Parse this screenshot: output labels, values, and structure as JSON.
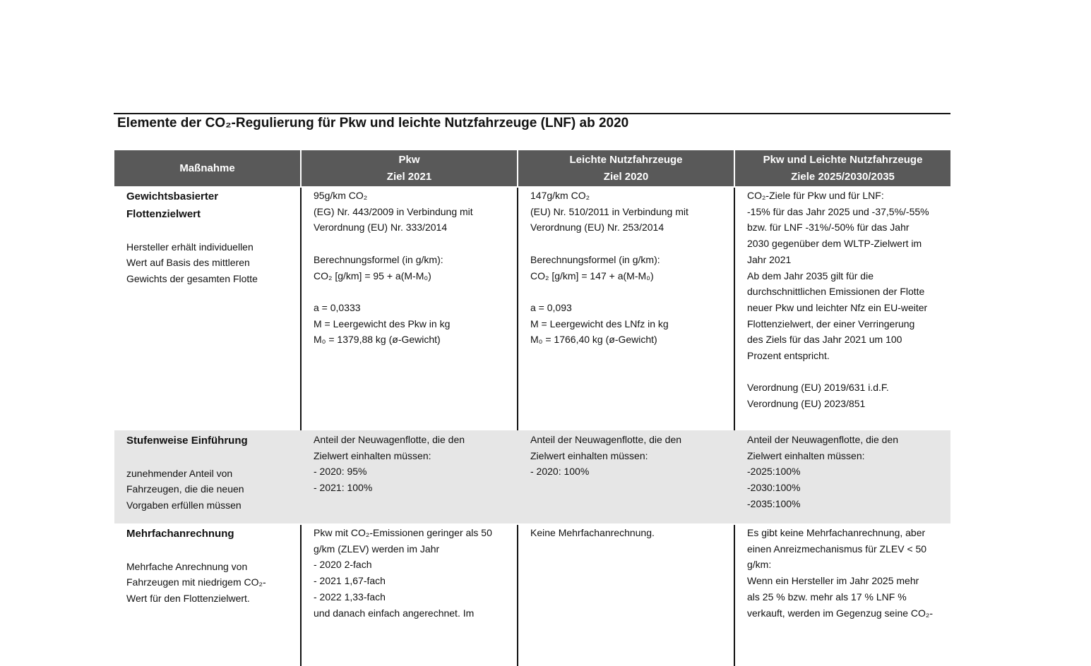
{
  "title": "Elemente der CO₂-Regulierung für Pkw und leichte Nutzfahrzeuge (LNF) ab 2020",
  "table": {
    "headers": [
      [
        "Maßnahme"
      ],
      [
        "Pkw",
        "Ziel 2021"
      ],
      [
        "Leichte Nutzfahrzeuge",
        "Ziel 2020"
      ],
      [
        "Pkw und Leichte Nutzfahrzeuge",
        "Ziele 2025/2030/2035"
      ]
    ],
    "rows": [
      [
        [
          [
            "Gewichtsbasierter",
            "Flottenzielwert"
          ],
          [
            "Hersteller erhält individuellen",
            "Wert auf Basis des mittleren",
            "Gewichts der gesamten Flotte"
          ]
        ],
        [
          [
            "95g/km CO₂",
            "(EG) Nr. 443/2009 in Verbindung mit",
            "Verordnung (EU) Nr. 333/2014"
          ],
          [
            "Berechnungsformel (in g/km):",
            "CO₂ [g/km] = 95 + a(M-M₀)"
          ],
          [
            "a = 0,0333",
            "M = Leergewicht des Pkw in kg",
            "M₀ = 1379,88 kg (ø-Gewicht)"
          ]
        ],
        [
          [
            "147g/km CO₂",
            "(EU) Nr. 510/2011 in Verbindung mit",
            "Verordnung (EU) Nr. 253/2014"
          ],
          [
            "Berechnungsformel (in g/km):",
            "CO₂ [g/km] = 147 + a(M-M₀)"
          ],
          [
            "a = 0,093",
            "M = Leergewicht des LNfz in kg",
            "M₀ = 1766,40 kg (ø-Gewicht)"
          ]
        ],
        [
          [
            "CO₂-Ziele für Pkw und für LNF:",
            "-15% für das Jahr 2025 und -37,5%/-55%",
            "bzw. für LNF -31%/-50% für das Jahr",
            "2030 gegenüber dem WLTP-Zielwert im",
            "Jahr 2021",
            "Ab dem Jahr 2035 gilt für die",
            "durchschnittlichen Emissionen der Flotte",
            "neuer Pkw und leichter Nfz ein EU-weiter",
            "Flottenzielwert, der einer Verringerung",
            "des Ziels für das Jahr 2021 um 100",
            "Prozent entspricht."
          ],
          [
            "Verordnung (EU) 2019/631 i.d.F.",
            "Verordnung (EU) 2023/851"
          ]
        ]
      ],
      [
        [
          [
            "Stufenweise Einführung"
          ],
          [
            "zunehmender Anteil von",
            "Fahrzeugen, die die neuen",
            "Vorgaben erfüllen müssen"
          ]
        ],
        [
          [
            "Anteil der Neuwagenflotte, die den",
            "Zielwert einhalten müssen:",
            "- 2020: 95%",
            "- 2021: 100%"
          ]
        ],
        [
          [
            "Anteil der Neuwagenflotte, die den",
            "Zielwert einhalten müssen:",
            "- 2020: 100%"
          ]
        ],
        [
          [
            "Anteil der Neuwagenflotte, die den",
            "Zielwert einhalten müssen:",
            "-2025:100%",
            "-2030:100%",
            "-2035:100%"
          ]
        ]
      ],
      [
        [
          [
            "Mehrfachanrechnung"
          ],
          [
            "Mehrfache Anrechnung von",
            "Fahrzeugen mit niedrigem CO₂-",
            "Wert für den Flottenzielwert."
          ]
        ],
        [
          [
            "Pkw mit CO₂-Emissionen geringer als 50",
            "g/km (ZLEV) werden im Jahr",
            "- 2020 2-fach",
            "- 2021 1,67-fach",
            "- 2022 1,33-fach",
            "und danach einfach angerechnet. Im"
          ]
        ],
        [
          [
            "Keine Mehrfachanrechnung."
          ]
        ],
        [
          [
            "Es gibt keine Mehrfachanrechnung, aber",
            "einen Anreizmechanismus für ZLEV < 50",
            "g/km:",
            "Wenn ein Hersteller im Jahr 2025 mehr",
            "als 25 % bzw. mehr als 17 %  LNF %",
            "verkauft, werden im Gegenzug seine CO₂-"
          ]
        ]
      ]
    ]
  }
}
